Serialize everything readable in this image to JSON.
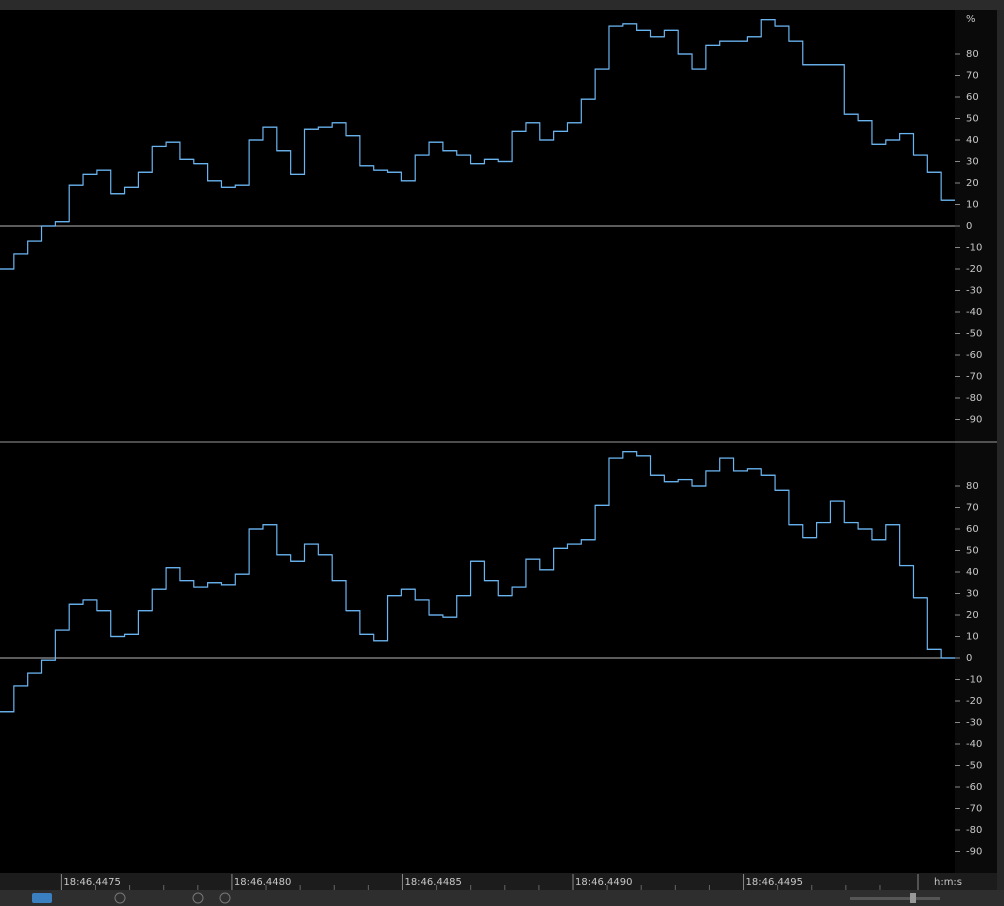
{
  "chart_data": [
    {
      "type": "line",
      "step": true,
      "color": "#6ab4f0",
      "unit_label": "%",
      "ylim": [
        -100,
        100
      ],
      "yticks": [
        80,
        70,
        60,
        50,
        40,
        30,
        20,
        10,
        0,
        -10,
        -20,
        -30,
        -40,
        -50,
        -60,
        -70,
        -80,
        -90
      ],
      "values": [
        -20,
        -13,
        -7,
        0,
        2,
        19,
        24,
        26,
        15,
        18,
        25,
        37,
        39,
        31,
        29,
        21,
        18,
        19,
        40,
        46,
        35,
        24,
        45,
        46,
        48,
        42,
        28,
        26,
        25,
        21,
        33,
        39,
        35,
        33,
        29,
        31,
        30,
        44,
        48,
        40,
        44,
        48,
        59,
        73,
        93,
        94,
        91,
        88,
        91,
        80,
        73,
        84,
        86,
        86,
        88,
        96,
        93,
        86,
        75,
        75,
        75,
        52,
        49,
        38,
        40,
        43,
        33,
        25,
        12
      ]
    },
    {
      "type": "line",
      "step": true,
      "color": "#6ab4f0",
      "ylim": [
        -100,
        100
      ],
      "yticks": [
        80,
        70,
        60,
        50,
        40,
        30,
        20,
        10,
        0,
        -10,
        -20,
        -30,
        -40,
        -50,
        -60,
        -70,
        -80,
        -90
      ],
      "values": [
        -25,
        -13,
        -7,
        -1,
        13,
        25,
        27,
        22,
        10,
        11,
        22,
        32,
        42,
        36,
        33,
        35,
        34,
        39,
        60,
        62,
        48,
        45,
        53,
        48,
        36,
        22,
        11,
        8,
        29,
        32,
        27,
        20,
        19,
        29,
        45,
        36,
        29,
        33,
        46,
        41,
        51,
        53,
        55,
        71,
        93,
        96,
        94,
        85,
        82,
        83,
        80,
        87,
        93,
        87,
        88,
        85,
        78,
        62,
        56,
        63,
        73,
        63,
        60,
        55,
        62,
        43,
        28,
        4,
        0
      ]
    }
  ],
  "time_axis": {
    "xlim": [
      46.44732,
      46.45012
    ],
    "xticks": [
      {
        "value": 46.4475,
        "label": "18:46.4475"
      },
      {
        "value": 46.448,
        "label": "18:46.4480"
      },
      {
        "value": 46.4485,
        "label": "18:46.4485"
      },
      {
        "value": 46.449,
        "label": "18:46.4490"
      },
      {
        "value": 46.4495,
        "label": "18:46.4495"
      }
    ],
    "unit_label": "h:m:s"
  }
}
